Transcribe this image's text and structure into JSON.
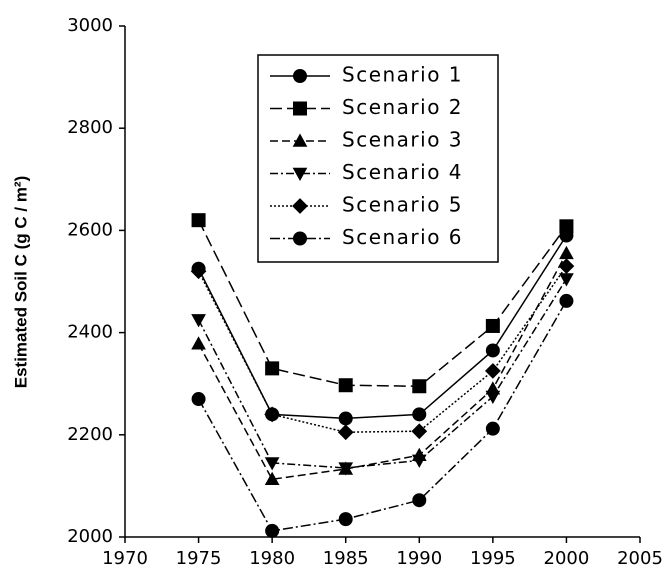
{
  "chart_data": {
    "type": "line",
    "y_label": "Estimated Soil C (g C / m²)",
    "x": [
      1975,
      1980,
      1985,
      1990,
      1995,
      2000
    ],
    "xlim": [
      1970,
      2005
    ],
    "xticks": [
      1970,
      1975,
      1980,
      1985,
      1990,
      1995,
      2000,
      2005
    ],
    "ylim": [
      2000,
      3000
    ],
    "yticks": [
      2000,
      2200,
      2400,
      2600,
      2800,
      3000
    ],
    "grid": false,
    "series": [
      {
        "name": "Scenario 1",
        "color": "#000000",
        "marker": "circle",
        "dash": "none",
        "values": [
          2525,
          2240,
          2232,
          2240,
          2365,
          2590
        ]
      },
      {
        "name": "Scenario 2",
        "color": "#000000",
        "marker": "square",
        "dash": "12 5",
        "values": [
          2620,
          2330,
          2297,
          2295,
          2413,
          2608
        ]
      },
      {
        "name": "Scenario 3",
        "color": "#000000",
        "marker": "triangle-up",
        "dash": "8 4",
        "values": [
          2378,
          2113,
          2133,
          2160,
          2290,
          2555
        ]
      },
      {
        "name": "Scenario 4",
        "color": "#000000",
        "marker": "triangle-down",
        "dash": "8 3 2 3",
        "values": [
          2425,
          2145,
          2135,
          2150,
          2275,
          2505
        ]
      },
      {
        "name": "Scenario 5",
        "color": "#000000",
        "marker": "diamond",
        "dash": "2 2",
        "values": [
          2520,
          2240,
          2205,
          2207,
          2325,
          2530
        ]
      },
      {
        "name": "Scenario 6",
        "color": "#000000",
        "marker": "circle",
        "dash": "10 3 2 3",
        "values": [
          2270,
          2012,
          2035,
          2072,
          2212,
          2462
        ]
      }
    ]
  }
}
